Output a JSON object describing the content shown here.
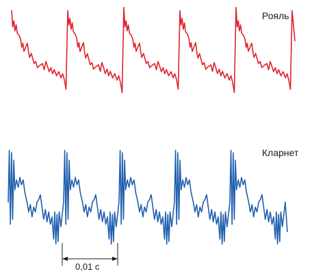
{
  "labels": {
    "piano": "Рояль",
    "clarinet": "Кларнет",
    "scale": "0,01 с"
  },
  "colors": {
    "piano": "#e0202a",
    "clarinet": "#1f5fae",
    "scale": "#1a1a1a"
  }
}
